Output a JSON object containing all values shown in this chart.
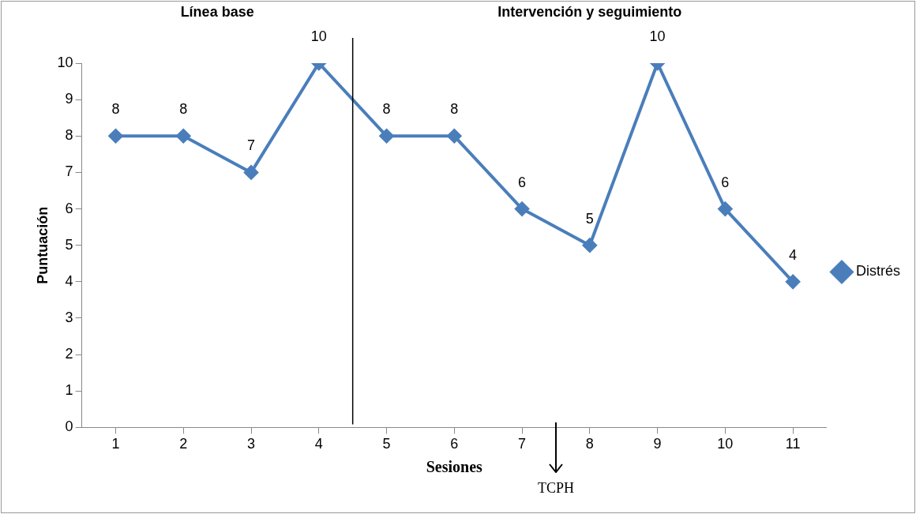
{
  "chart_data": {
    "type": "line",
    "xlabel": "Sesiones",
    "ylabel": "Puntuación",
    "x": [
      1,
      2,
      3,
      4,
      5,
      6,
      7,
      8,
      9,
      10,
      11
    ],
    "xlim": [
      0.5,
      11.5
    ],
    "xticks": [
      1,
      2,
      3,
      4,
      5,
      6,
      7,
      8,
      9,
      10,
      11
    ],
    "ylim": [
      0,
      10
    ],
    "yticks": [
      0,
      1,
      2,
      3,
      4,
      5,
      6,
      7,
      8,
      9,
      10
    ],
    "series": [
      {
        "name": "Distrés",
        "color": "#4a7ebb",
        "values": [
          8,
          8,
          7,
          10,
          8,
          8,
          6,
          5,
          10,
          6,
          4
        ]
      }
    ],
    "marker": "diamond",
    "data_labels": true,
    "grid": false,
    "legend": "right",
    "ref_lines": [
      {
        "axis": "x",
        "value": 4.5,
        "color": "#000000"
      }
    ],
    "annotations": [
      "Línea base",
      "Intervención y seguimiento",
      "TCPH"
    ]
  }
}
